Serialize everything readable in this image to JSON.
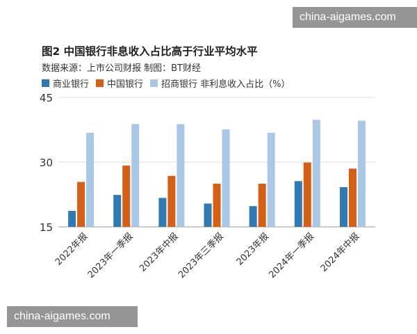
{
  "watermark": "china-aigames.com",
  "title": "图2 中国银行非息收入占比高于行业平均水平",
  "source": "数据来源：上市公司财报    制图：BT财经",
  "colors": {
    "商业银行": "#2f7ab5",
    "中国银行": "#d75f14",
    "招商银行": "#a9c8e6",
    "grid": "#dcdcdc",
    "axis": "#999999"
  },
  "chart_data": {
    "type": "bar",
    "categories": [
      "2022年报",
      "2023年一季报",
      "2023年中报",
      "2023年三季报",
      "2023年报",
      "2024年一季报",
      "2024年中报"
    ],
    "series": [
      {
        "name": "商业银行",
        "values": [
          18.7,
          22.4,
          21.7,
          20.4,
          19.8,
          25.6,
          24.2
        ]
      },
      {
        "name": "中国银行",
        "values": [
          25.4,
          29.2,
          26.8,
          25.0,
          25.0,
          29.9,
          28.5
        ]
      },
      {
        "name": "招商银行 非利息收入占比（%）",
        "values": [
          36.8,
          38.8,
          38.8,
          37.6,
          36.8,
          39.8,
          39.6
        ]
      }
    ],
    "y_ticks": [
      "15",
      "30",
      "45"
    ],
    "ylim": [
      15,
      45
    ],
    "grid": true,
    "legend_position": "top-left"
  }
}
